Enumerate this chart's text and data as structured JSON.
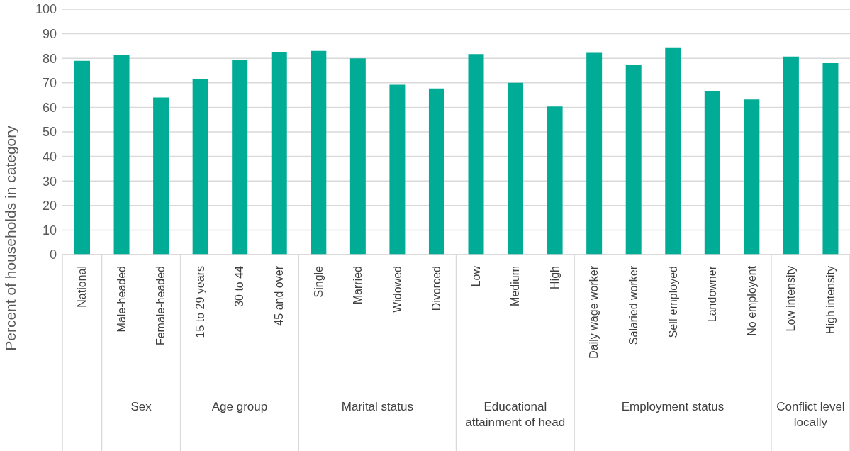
{
  "chart_data": {
    "type": "bar",
    "ylabel": "Percent of households in category",
    "categories": [
      "National",
      "Male-headed",
      "Female-headed",
      "15 to 29 years",
      "30 to 44",
      "45 and over",
      "Single",
      "Married",
      "Widowed",
      "Divorced",
      "Low",
      "Medium",
      "High",
      "Daily wage worker",
      "Salaried worker",
      "Self employed",
      "Landowner",
      "No employent",
      "Low intensity",
      "High intensity"
    ],
    "values": [
      79,
      81.5,
      64,
      71.5,
      79.3,
      82.5,
      83,
      80,
      69.2,
      67.7,
      81.7,
      70,
      60.3,
      82.2,
      77.2,
      84.5,
      66.5,
      63.2,
      80.7,
      78
    ],
    "color": "#00ac96",
    "ylim": [
      0,
      100
    ],
    "yticks": [
      0,
      10,
      20,
      30,
      40,
      50,
      60,
      70,
      80,
      90,
      100
    ],
    "grid": "y",
    "annotations": [
      "Sex",
      "Age group",
      "Marital status",
      "Educational attainment of head",
      "Employment status",
      "Conflict level locally"
    ]
  }
}
